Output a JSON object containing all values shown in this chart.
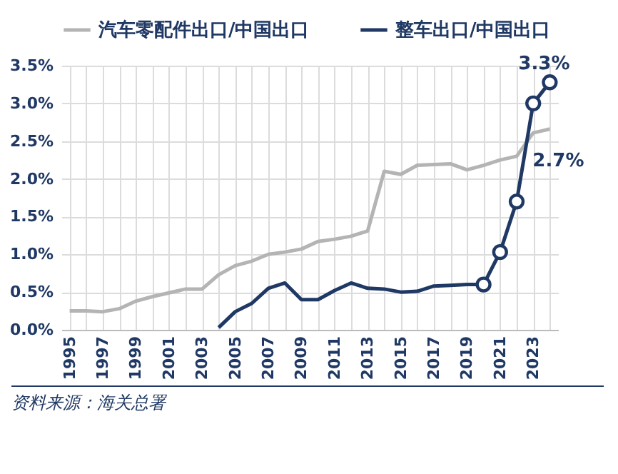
{
  "chart_data": {
    "type": "line",
    "legend": "top",
    "grid": true,
    "line_style": "solid",
    "x": [
      1995,
      1996,
      1997,
      1998,
      1999,
      2000,
      2001,
      2002,
      2003,
      2004,
      2005,
      2006,
      2007,
      2008,
      2009,
      2010,
      2011,
      2012,
      2013,
      2014,
      2015,
      2016,
      2017,
      2018,
      2019,
      2020,
      2021,
      2022,
      2023,
      2024
    ],
    "xlim": [
      1994.5,
      2024.5
    ],
    "xticks": [
      1995,
      {
        "value": 1996,
        "label": null
      },
      1997,
      {
        "value": 1998,
        "label": null
      },
      1999,
      {
        "value": 2000,
        "label": null
      },
      2001,
      {
        "value": 2002,
        "label": null
      },
      2003,
      {
        "value": 2004,
        "label": null
      },
      2005,
      {
        "value": 2006,
        "label": null
      },
      2007,
      {
        "value": 2008,
        "label": null
      },
      2009,
      {
        "value": 2010,
        "label": null
      },
      2011,
      {
        "value": 2012,
        "label": null
      },
      2013,
      {
        "value": 2014,
        "label": null
      },
      2015,
      {
        "value": 2016,
        "label": null
      },
      2017,
      {
        "value": 2018,
        "label": null
      },
      2019,
      {
        "value": 2020,
        "label": null
      },
      2021,
      {
        "value": 2022,
        "label": null
      },
      2023,
      {
        "value": 2024,
        "label": null
      }
    ],
    "ylim": [
      0,
      3.5
    ],
    "yticks": [
      {
        "value": 0,
        "label": "0.0%"
      },
      {
        "value": 0.5,
        "label": "0.5%"
      },
      {
        "value": 1,
        "label": "1.0%"
      },
      {
        "value": 1.5,
        "label": "1.5%"
      },
      {
        "value": 2,
        "label": "2.0%"
      },
      {
        "value": 2.5,
        "label": "2.5%"
      },
      {
        "value": 3,
        "label": "3.0%"
      },
      {
        "value": 3.5,
        "label": "3.5%"
      }
    ],
    "series": [
      {
        "name": "汽车零配件出口/中国出口",
        "color": "#b4b4b4",
        "values": [
          0.25,
          0.25,
          0.24,
          0.28,
          0.38,
          0.44,
          0.49,
          0.54,
          0.54,
          0.73,
          0.85,
          0.91,
          1.0,
          1.03,
          1.07,
          1.17,
          1.2,
          1.24,
          1.31,
          2.1,
          2.06,
          2.18,
          2.19,
          2.2,
          2.12,
          2.18,
          2.25,
          2.3,
          2.61,
          2.66
        ],
        "value_labels": [
          null,
          null,
          null,
          null,
          null,
          null,
          null,
          null,
          null,
          null,
          null,
          null,
          null,
          null,
          null,
          null,
          null,
          null,
          null,
          null,
          null,
          null,
          null,
          null,
          null,
          null,
          null,
          null,
          null,
          "2.7%"
        ]
      },
      {
        "name": "整车出口/中国出口",
        "color": "#1f3864",
        "values": [
          null,
          null,
          null,
          null,
          null,
          null,
          null,
          null,
          null,
          0.03,
          0.24,
          0.35,
          0.55,
          0.62,
          0.4,
          0.4,
          0.52,
          0.62,
          0.55,
          0.54,
          0.5,
          0.51,
          0.58,
          0.59,
          0.6,
          0.6,
          1.03,
          1.7,
          3.0,
          3.28
        ],
        "value_labels": [
          null,
          null,
          null,
          null,
          null,
          null,
          null,
          null,
          null,
          null,
          null,
          null,
          null,
          null,
          null,
          null,
          null,
          null,
          null,
          null,
          null,
          null,
          null,
          null,
          null,
          null,
          null,
          null,
          null,
          "3.3%"
        ]
      },
      {
        "type": "scatter",
        "marker": "circle",
        "color": "#1f3864",
        "x": [
          2020,
          2021,
          2022,
          2023,
          2024
        ],
        "values": [
          0.6,
          1.03,
          1.7,
          3.0,
          3.28
        ]
      }
    ],
    "annotations": [
      "资料来源：海关总署"
    ]
  }
}
